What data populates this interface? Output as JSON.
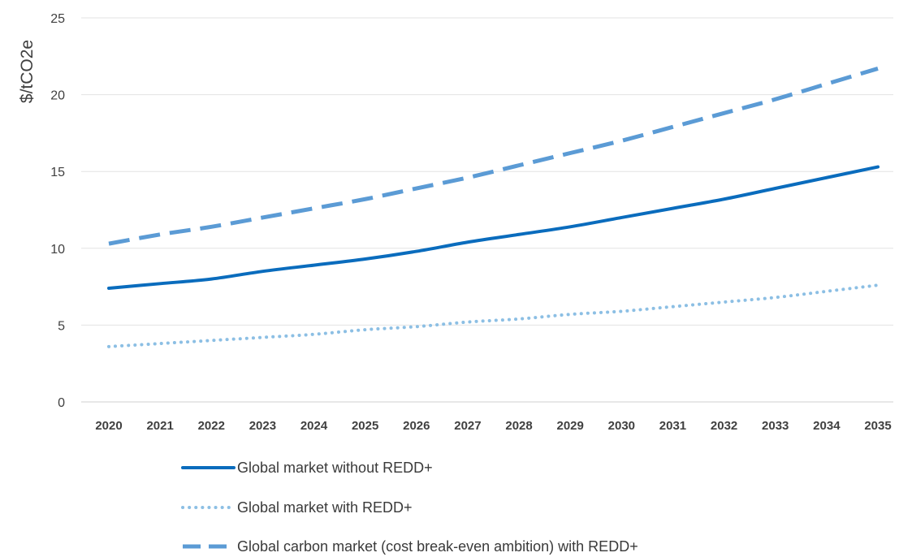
{
  "chart_data": {
    "type": "line",
    "title": "",
    "xlabel": "",
    "ylabel": "$/tCO2e",
    "ylim": [
      0,
      25
    ],
    "yticks": [
      "0",
      "5",
      "10",
      "15",
      "20",
      "25"
    ],
    "categories": [
      "2020",
      "2021",
      "2022",
      "2023",
      "2024",
      "2025",
      "2026",
      "2027",
      "2028",
      "2029",
      "2030",
      "2031",
      "2032",
      "2033",
      "2034",
      "2035"
    ],
    "grid": true,
    "legend_position": "bottom",
    "series": [
      {
        "name": "Global market without REDD+",
        "style": "solid",
        "color": "#0a6cbd",
        "values": [
          7.4,
          7.7,
          8.0,
          8.5,
          8.9,
          9.3,
          9.8,
          10.4,
          10.9,
          11.4,
          12.0,
          12.6,
          13.2,
          13.9,
          14.6,
          15.3
        ]
      },
      {
        "name": "Global market with REDD+",
        "style": "dotted",
        "color": "#8cbfe4",
        "values": [
          3.6,
          3.8,
          4.0,
          4.2,
          4.4,
          4.7,
          4.9,
          5.2,
          5.4,
          5.7,
          5.9,
          6.2,
          6.5,
          6.8,
          7.2,
          7.6
        ]
      },
      {
        "name": "Global carbon market  (cost break-even ambition) with REDD+",
        "style": "dashed",
        "color": "#5b9bd5",
        "values": [
          10.3,
          10.9,
          11.4,
          12.0,
          12.6,
          13.2,
          13.9,
          14.6,
          15.4,
          16.2,
          17.0,
          17.9,
          18.8,
          19.7,
          20.7,
          21.7
        ]
      }
    ]
  }
}
